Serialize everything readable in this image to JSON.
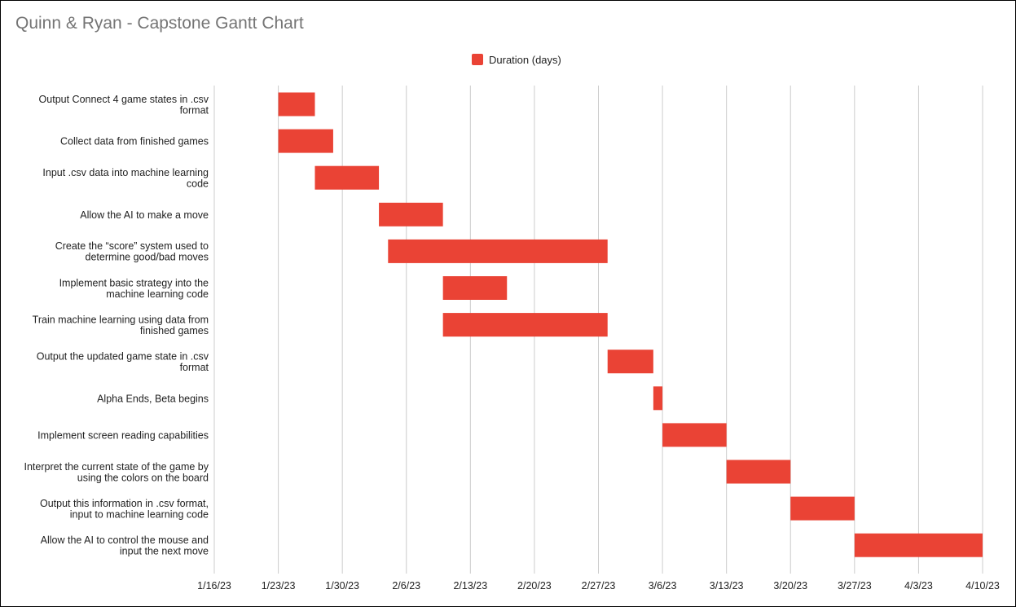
{
  "colors": {
    "bar": "#ea4335",
    "grid": "#cccccc",
    "title": "#757575",
    "text": "#222222"
  },
  "chart_data": {
    "type": "bar",
    "orientation": "horizontal-gantt",
    "title": "Quinn & Ryan - Capstone Gantt Chart",
    "legend": {
      "position": "top",
      "entries": [
        "Duration (days)"
      ]
    },
    "grid": true,
    "xlim": [
      "2023-01-16",
      "2023-04-10"
    ],
    "x_ticks": [
      "1/16/23",
      "1/23/23",
      "1/30/23",
      "2/6/23",
      "2/13/23",
      "2/20/23",
      "2/27/23",
      "3/6/23",
      "3/13/23",
      "3/20/23",
      "3/27/23",
      "4/3/23",
      "4/10/23"
    ],
    "series": [
      {
        "name": "Duration (days)",
        "tasks": [
          {
            "lines": [
              "Output Connect 4 game states in .csv",
              "format"
            ],
            "start": "2023-01-23",
            "end": "2023-01-27"
          },
          {
            "lines": [
              "Collect data from finished games"
            ],
            "start": "2023-01-23",
            "end": "2023-01-29"
          },
          {
            "lines": [
              "Input .csv data into machine learning",
              "code"
            ],
            "start": "2023-01-27",
            "end": "2023-02-03"
          },
          {
            "lines": [
              "Allow the AI to make a move"
            ],
            "start": "2023-02-03",
            "end": "2023-02-10"
          },
          {
            "lines": [
              "Create the “score” system used to",
              "determine good/bad moves"
            ],
            "start": "2023-02-04",
            "end": "2023-02-28"
          },
          {
            "lines": [
              "Implement basic strategy into the",
              "machine learning code"
            ],
            "start": "2023-02-10",
            "end": "2023-02-17"
          },
          {
            "lines": [
              "Train machine learning using data from",
              "finished games"
            ],
            "start": "2023-02-10",
            "end": "2023-02-28"
          },
          {
            "lines": [
              "Output the updated game state in .csv",
              "format"
            ],
            "start": "2023-02-28",
            "end": "2023-03-05"
          },
          {
            "lines": [
              "Alpha Ends, Beta begins"
            ],
            "start": "2023-03-05",
            "end": "2023-03-06"
          },
          {
            "lines": [
              "Implement screen reading capabilities"
            ],
            "start": "2023-03-06",
            "end": "2023-03-13"
          },
          {
            "lines": [
              "Interpret the current state of the game by",
              "using the colors on the board"
            ],
            "start": "2023-03-13",
            "end": "2023-03-20"
          },
          {
            "lines": [
              "Output this information in .csv format,",
              "input to machine learning code"
            ],
            "start": "2023-03-20",
            "end": "2023-03-27"
          },
          {
            "lines": [
              "Allow the AI to control the mouse and",
              "input the next move"
            ],
            "start": "2023-03-27",
            "end": "2023-04-10"
          }
        ]
      }
    ]
  }
}
